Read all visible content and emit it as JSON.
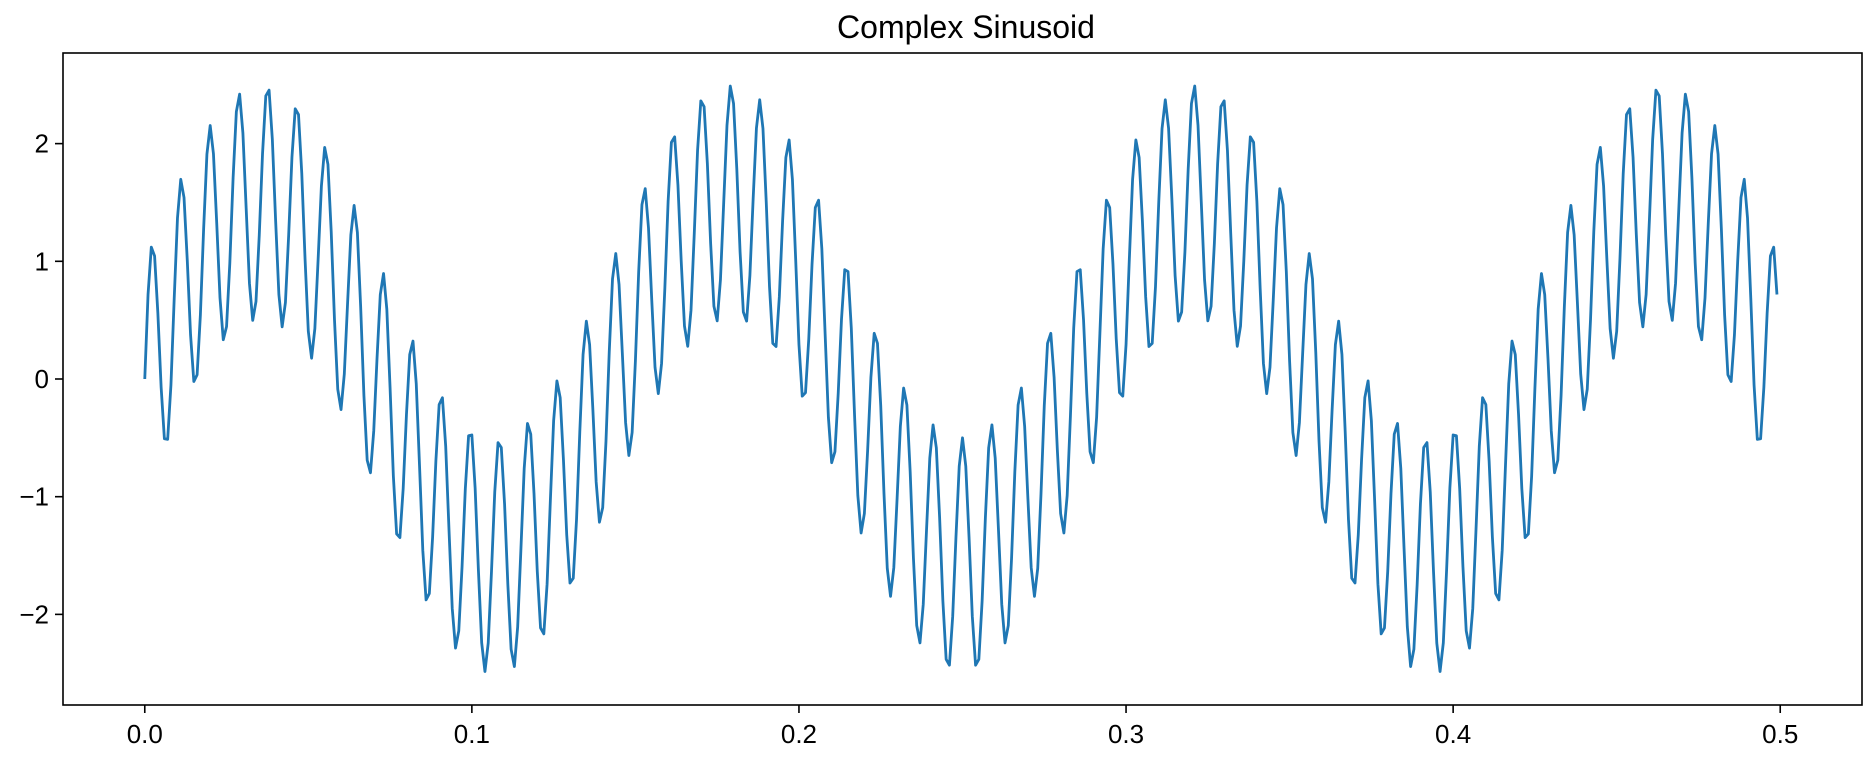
{
  "chart_data": {
    "type": "line",
    "title": "Complex Sinusoid",
    "xlabel": "",
    "ylabel": "",
    "xlim": [
      -0.025,
      0.525
    ],
    "ylim": [
      -2.77,
      2.77
    ],
    "xticks": [
      {
        "value": 0.0,
        "label": "0.0"
      },
      {
        "value": 0.1,
        "label": "0.1"
      },
      {
        "value": 0.2,
        "label": "0.2"
      },
      {
        "value": 0.3,
        "label": "0.3"
      },
      {
        "value": 0.4,
        "label": "0.4"
      },
      {
        "value": 0.5,
        "label": "0.5"
      }
    ],
    "yticks": [
      {
        "value": -2,
        "label": "−2"
      },
      {
        "value": -1,
        "label": "−1"
      },
      {
        "value": 0,
        "label": "0"
      },
      {
        "value": 1,
        "label": "1"
      },
      {
        "value": 2,
        "label": "2"
      }
    ],
    "grid": false,
    "legend": "none",
    "series": [
      {
        "color": "#1f77b4",
        "formula": "1.5*sin(2*pi*7*t) + 1*sin(2*pi*113*t)",
        "t_start": 0,
        "t_end": 0.499,
        "t_step": 0.001
      }
    ]
  }
}
